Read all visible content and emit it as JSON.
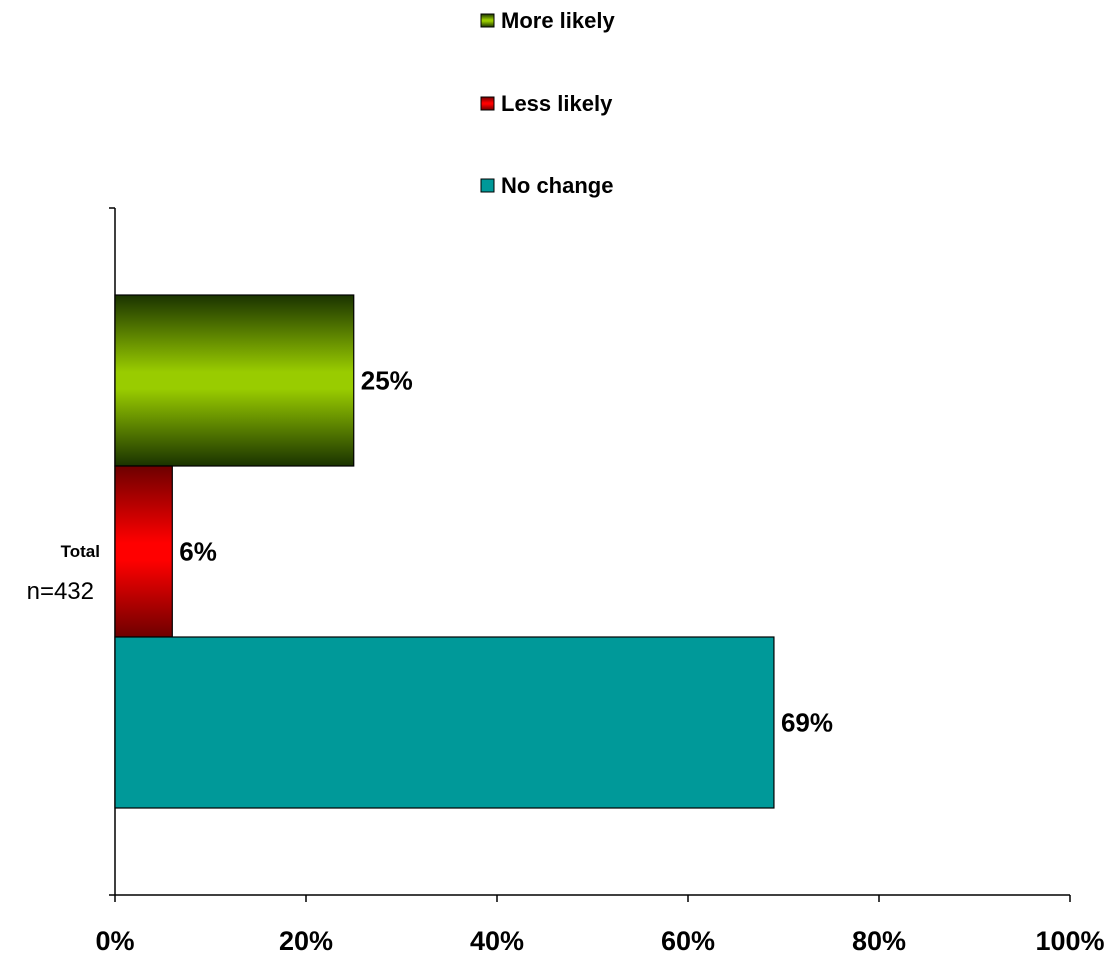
{
  "chart_data": {
    "type": "bar",
    "orientation": "horizontal",
    "categories": [
      "Total"
    ],
    "category_note": "n=432",
    "series": [
      {
        "name": "More likely",
        "values": [
          25
        ],
        "value_labels": [
          "25%"
        ],
        "color": "#99cc00"
      },
      {
        "name": "Less likely",
        "values": [
          6
        ],
        "value_labels": [
          "6%"
        ],
        "color": "#ff0000"
      },
      {
        "name": "No change",
        "values": [
          69
        ],
        "value_labels": [
          "69%"
        ],
        "color": "#009999"
      }
    ],
    "x_ticks": [
      "0%",
      "20%",
      "40%",
      "60%",
      "80%",
      "100%"
    ],
    "xlim": [
      0,
      100
    ],
    "legend_position": "top",
    "grid": false
  }
}
